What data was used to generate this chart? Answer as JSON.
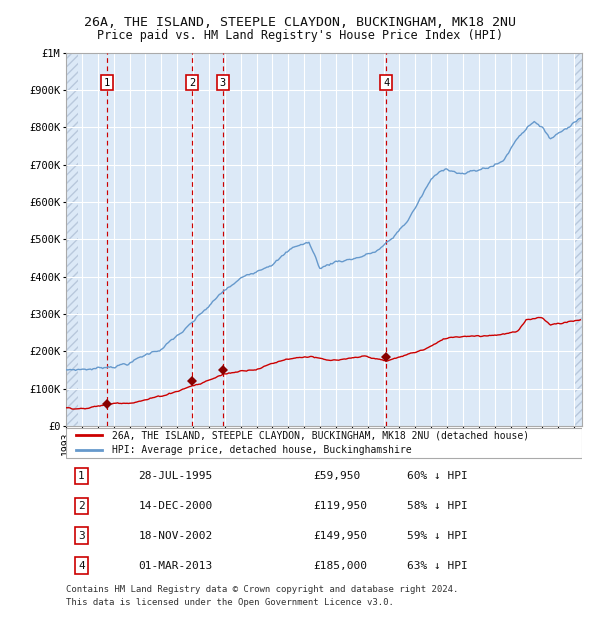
{
  "title": "26A, THE ISLAND, STEEPLE CLAYDON, BUCKINGHAM, MK18 2NU",
  "subtitle": "Price paid vs. HM Land Registry's House Price Index (HPI)",
  "plot_bg_color": "#dce9f7",
  "grid_color": "#ffffff",
  "ylim": [
    0,
    1000000
  ],
  "yticks": [
    0,
    100000,
    200000,
    300000,
    400000,
    500000,
    600000,
    700000,
    800000,
    900000,
    1000000
  ],
  "ytick_labels": [
    "£0",
    "£100K",
    "£200K",
    "£300K",
    "£400K",
    "£500K",
    "£600K",
    "£700K",
    "£800K",
    "£900K",
    "£1M"
  ],
  "xlim_start": 1993.0,
  "xlim_end": 2025.5,
  "transactions": [
    {
      "num": 1,
      "date_label": "28-JUL-1995",
      "year": 1995.57,
      "price": 59950,
      "pct": "60%",
      "direction": "↓"
    },
    {
      "num": 2,
      "date_label": "14-DEC-2000",
      "year": 2000.96,
      "price": 119950,
      "pct": "58%",
      "direction": "↓"
    },
    {
      "num": 3,
      "date_label": "18-NOV-2002",
      "year": 2002.88,
      "price": 149950,
      "pct": "59%",
      "direction": "↓"
    },
    {
      "num": 4,
      "date_label": "01-MAR-2013",
      "year": 2013.17,
      "price": 185000,
      "pct": "63%",
      "direction": "↓"
    }
  ],
  "legend_red_label": "26A, THE ISLAND, STEEPLE CLAYDON, BUCKINGHAM, MK18 2NU (detached house)",
  "legend_blue_label": "HPI: Average price, detached house, Buckinghamshire",
  "footer_line1": "Contains HM Land Registry data © Crown copyright and database right 2024.",
  "footer_line2": "This data is licensed under the Open Government Licence v3.0.",
  "red_color": "#cc0000",
  "blue_color": "#6699cc",
  "marker_color": "#880000",
  "vline_color": "#cc0000",
  "table_rows": [
    [
      1,
      "28-JUL-1995",
      "£59,950",
      "60% ↓ HPI"
    ],
    [
      2,
      "14-DEC-2000",
      "£119,950",
      "58% ↓ HPI"
    ],
    [
      3,
      "18-NOV-2002",
      "£149,950",
      "59% ↓ HPI"
    ],
    [
      4,
      "01-MAR-2013",
      "£185,000",
      "63% ↓ HPI"
    ]
  ]
}
